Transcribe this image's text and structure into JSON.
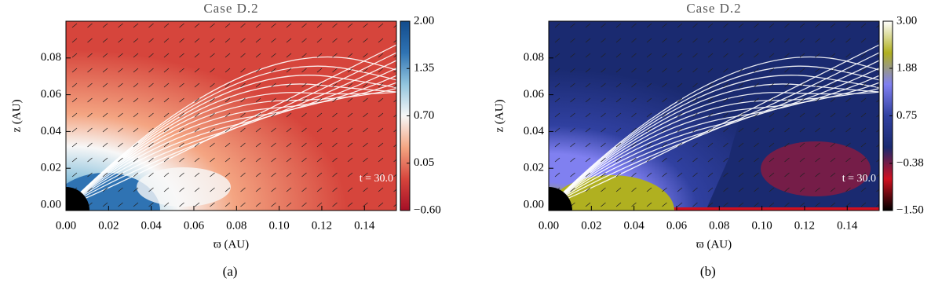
{
  "chart_data": [
    {
      "type": "heatmap",
      "title": "Case D.2",
      "x_label": "ϖ (AU)",
      "y_label": "z (AU)",
      "annotation": "t =  30.0",
      "caption": "(a)",
      "xlim": [
        0,
        0.155
      ],
      "ylim": [
        -0.003,
        0.1
      ],
      "xticks": [
        {
          "value": 0,
          "label": "0.00"
        },
        {
          "value": 0.02,
          "label": "0.02"
        },
        {
          "value": 0.04,
          "label": "0.04"
        },
        {
          "value": 0.06,
          "label": "0.06"
        },
        {
          "value": 0.08,
          "label": "0.08"
        },
        {
          "value": 0.1,
          "label": "0.10"
        },
        {
          "value": 0.12,
          "label": "0.12"
        },
        {
          "value": 0.14,
          "label": "0.14"
        }
      ],
      "yticks": [
        {
          "value": 0,
          "label": "0.00"
        },
        {
          "value": 0.02,
          "label": "0.02"
        },
        {
          "value": 0.04,
          "label": "0.04"
        },
        {
          "value": 0.06,
          "label": "0.06"
        },
        {
          "value": 0.08,
          "label": "0.08"
        }
      ],
      "colorbar_lim": [
        -0.6,
        2.0
      ],
      "colorbar_ticks": [
        {
          "value": 2.0,
          "label": "2.00"
        },
        {
          "value": 1.35,
          "label": "1.35"
        },
        {
          "value": 0.7,
          "label": "0.70"
        },
        {
          "value": 0.05,
          "label": "0.05"
        },
        {
          "value": -0.6,
          "label": "−0.60"
        }
      ],
      "colormap": [
        "#a50f26",
        "#d6453c",
        "#f4a582",
        "#f7f7f7",
        "#92c5de",
        "#2f73b3",
        "#124b8c"
      ]
    },
    {
      "type": "heatmap",
      "title": "Case D.2",
      "x_label": "ϖ (AU)",
      "y_label": "z (AU)",
      "annotation": "t =  30.0",
      "caption": "(b)",
      "xlim": [
        0,
        0.155
      ],
      "ylim": [
        -0.003,
        0.1
      ],
      "xticks": [
        {
          "value": 0,
          "label": "0.00"
        },
        {
          "value": 0.02,
          "label": "0.02"
        },
        {
          "value": 0.04,
          "label": "0.04"
        },
        {
          "value": 0.06,
          "label": "0.06"
        },
        {
          "value": 0.08,
          "label": "0.08"
        },
        {
          "value": 0.1,
          "label": "0.10"
        },
        {
          "value": 0.12,
          "label": "0.12"
        },
        {
          "value": 0.14,
          "label": "0.14"
        }
      ],
      "yticks": [
        {
          "value": 0,
          "label": "0.00"
        },
        {
          "value": 0.02,
          "label": "0.02"
        },
        {
          "value": 0.04,
          "label": "0.04"
        },
        {
          "value": 0.06,
          "label": "0.06"
        },
        {
          "value": 0.08,
          "label": "0.08"
        }
      ],
      "colorbar_lim": [
        -1.5,
        3.0
      ],
      "colorbar_ticks": [
        {
          "value": 3.0,
          "label": "3.00"
        },
        {
          "value": 1.88,
          "label": "1.88"
        },
        {
          "value": 0.75,
          "label": "0.75"
        },
        {
          "value": -0.38,
          "label": "−0.38"
        },
        {
          "value": -1.5,
          "label": "−1.50"
        }
      ],
      "colormap": [
        "#000000",
        "#d01020",
        "#1a2a70",
        "#3040a0",
        "#8080f0",
        "#b0b020",
        "#ffffff"
      ]
    }
  ]
}
